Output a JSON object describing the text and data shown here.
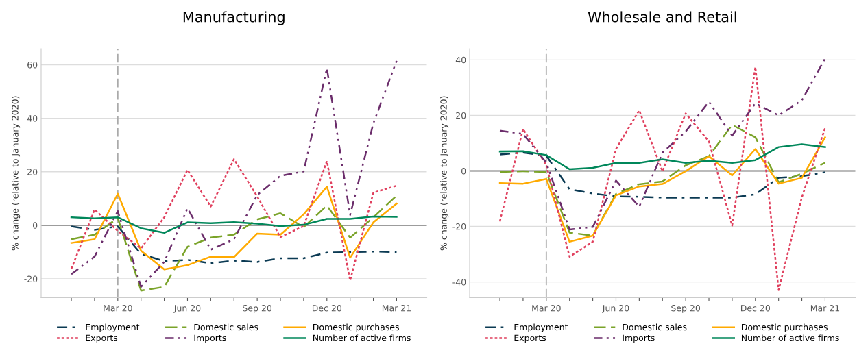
{
  "chart_data": [
    {
      "type": "line",
      "title": "Manufacturing",
      "ylabel": "% change (relative to January 2020)",
      "categories": [
        null,
        null,
        "Mar 20",
        null,
        null,
        "Jun 20",
        null,
        null,
        "Sep 20",
        null,
        null,
        "Dec 20",
        null,
        null,
        "Mar 21"
      ],
      "ylim": [
        -27,
        66
      ],
      "yticks": [
        -20,
        0,
        20,
        40,
        60
      ],
      "grid": "y",
      "legend": "bottom",
      "marker": "none",
      "ref_lines": [
        {
          "axis": "x",
          "value": "Mar 20",
          "color": "#aaaaaa",
          "line_style": "dashed"
        },
        {
          "axis": "y",
          "value": 0,
          "color": "#808080",
          "line_style": "solid"
        }
      ],
      "series": [
        {
          "name": "Employment",
          "color": "#0b3a53",
          "line_style": "dashdot",
          "values": [
            -0.4,
            -1.7,
            -0.4,
            -10.7,
            -13.4,
            -12.9,
            -14.2,
            -13.2,
            -13.7,
            -12.3,
            -12.3,
            -10.2,
            -10,
            -9.8,
            -10
          ]
        },
        {
          "name": "Domestic sales",
          "color": "#7aa329",
          "line_style": "dashed",
          "values": [
            -5.2,
            -3.5,
            2.7,
            -24.4,
            -23,
            -8,
            -4.6,
            -3.5,
            2.2,
            4.5,
            -0.7,
            7.4,
            -4.6,
            3,
            11.1
          ]
        },
        {
          "name": "Domestic purchases",
          "color": "#ffaa00",
          "line_style": "solid",
          "values": [
            -6.6,
            -5.2,
            11.8,
            -9.5,
            -16.5,
            -14.9,
            -11.7,
            -11.9,
            -3.1,
            -3.5,
            4.1,
            14.4,
            -12.1,
            1.1,
            8.1
          ]
        },
        {
          "name": "Exports",
          "color": "#e0405e",
          "line_style": "dotted",
          "values": [
            -16.3,
            5.9,
            -2.1,
            -8.6,
            3,
            20.7,
            7,
            24.7,
            10.8,
            -4.4,
            -0.3,
            24,
            -20.6,
            12.2,
            14.8
          ]
        },
        {
          "name": "Imports",
          "color": "#6b2d6b",
          "line_style": "dashdotdot",
          "values": [
            -18.3,
            -11.7,
            5.3,
            -23,
            -13.7,
            6.4,
            -9.1,
            -5.2,
            11.3,
            18.5,
            20.1,
            58.7,
            3.9,
            38.1,
            61.5
          ]
        },
        {
          "name": "Number of active firms",
          "color": "#00875a",
          "line_style": "solid",
          "values": [
            3,
            2.6,
            3,
            -1.1,
            -2.8,
            1.1,
            0.8,
            1.2,
            0.6,
            -0.3,
            0.2,
            2.4,
            2.4,
            3.3,
            3.2
          ]
        }
      ]
    },
    {
      "type": "line",
      "title": "Wholesale and Retail",
      "ylabel": "% change (relative to January 2020)",
      "categories": [
        null,
        null,
        "Mar 20",
        null,
        null,
        "Jun 20",
        null,
        null,
        "Sep 20",
        null,
        null,
        "Dec 20",
        null,
        null,
        "Mar 21"
      ],
      "ylim": [
        -45.6,
        44
      ],
      "yticks": [
        -40,
        -20,
        0,
        20,
        40
      ],
      "grid": "y",
      "legend": "bottom",
      "marker": "none",
      "ref_lines": [
        {
          "axis": "x",
          "value": "Mar 20",
          "color": "#aaaaaa",
          "line_style": "dashed"
        },
        {
          "axis": "y",
          "value": 0,
          "color": "#808080",
          "line_style": "solid"
        }
      ],
      "series": [
        {
          "name": "Employment",
          "color": "#0b3a53",
          "line_style": "dashdot",
          "values": [
            5.9,
            6.6,
            5.5,
            -6.6,
            -8.1,
            -9.2,
            -9.3,
            -9.6,
            -9.6,
            -9.6,
            -9.6,
            -8.4,
            -2.5,
            -1.9,
            -0.5
          ]
        },
        {
          "name": "Domestic sales",
          "color": "#7aa329",
          "line_style": "dashed",
          "values": [
            -0.4,
            -0.1,
            -0.4,
            -22.2,
            -23.3,
            -8.3,
            -4.8,
            -3.8,
            2,
            5.3,
            16.6,
            12.1,
            -4.1,
            -1,
            2.9
          ]
        },
        {
          "name": "Domestic purchases",
          "color": "#ffaa00",
          "line_style": "solid",
          "values": [
            -4.4,
            -4.6,
            -2.9,
            -25.5,
            -23.3,
            -8.8,
            -5.6,
            -4.7,
            -0.1,
            5.3,
            -1.6,
            7.9,
            -4.6,
            -2.5,
            12.1
          ]
        },
        {
          "name": "Exports",
          "color": "#e0405e",
          "line_style": "dotted",
          "values": [
            -18.2,
            15.1,
            2.1,
            -30.9,
            -25.5,
            7.9,
            21.8,
            -0.1,
            20.7,
            10.6,
            -19.7,
            37.4,
            -42.9,
            -9.5,
            15.4
          ]
        },
        {
          "name": "Imports",
          "color": "#6b2d6b",
          "line_style": "dashdotdot",
          "values": [
            14.5,
            13.3,
            3,
            -21.1,
            -20.2,
            -3.5,
            -12.9,
            6.6,
            14.2,
            24.9,
            12.7,
            24.3,
            20,
            25.4,
            40.5
          ]
        },
        {
          "name": "Number of active firms",
          "color": "#00875a",
          "line_style": "solid",
          "values": [
            7,
            7.1,
            5.7,
            0.6,
            1.1,
            2.9,
            2.9,
            4.2,
            2.9,
            3.7,
            2.9,
            3.9,
            8.6,
            9.6,
            8.6
          ]
        }
      ]
    }
  ]
}
